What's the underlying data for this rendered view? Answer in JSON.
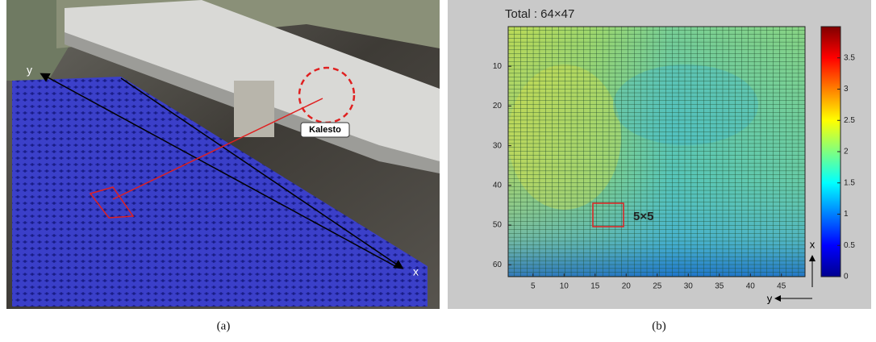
{
  "panel_a": {
    "caption": "(a)",
    "axis_y": "y",
    "axis_x": "x",
    "device": "Kalesto"
  },
  "panel_b": {
    "caption": "(b)",
    "title": "Total : 64×47",
    "window": "5×5",
    "axis_x": "x",
    "axis_y": "y",
    "ylim": [
      0,
      63
    ],
    "yticks": [
      10,
      20,
      30,
      40,
      50,
      60
    ],
    "xlim": [
      1,
      48.8
    ],
    "xticks": [
      5,
      10,
      15,
      20,
      25,
      30,
      35,
      40,
      45
    ],
    "clim": [
      0,
      4
    ],
    "colorbar_ticks": [
      0,
      0.5,
      1,
      1.5,
      2,
      2.5,
      3,
      3.5
    ]
  }
}
